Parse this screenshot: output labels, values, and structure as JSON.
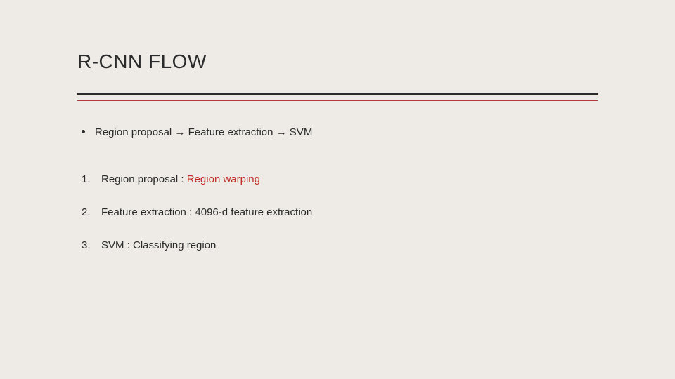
{
  "slide": {
    "title": "R-CNN FLOW",
    "title_fontsize": 28,
    "body_fontsize": 15,
    "background_color": "#eeebe6",
    "text_color": "#2b2b2b",
    "accent_color": "#c22828",
    "rule_thick_color": "#2b2b2b",
    "rule_thin_color": "#b23a3a",
    "bullet": {
      "text": "Region proposal → Feature extraction → SVM"
    },
    "items": [
      {
        "marker": "1.",
        "prefix": "Region proposal : ",
        "highlight": "Region warping",
        "suffix": ""
      },
      {
        "marker": "2.",
        "prefix": "Feature extraction : 4096-d feature extraction",
        "highlight": "",
        "suffix": ""
      },
      {
        "marker": "3.",
        "prefix": "SVM : Classifying region",
        "highlight": "",
        "suffix": ""
      }
    ]
  }
}
